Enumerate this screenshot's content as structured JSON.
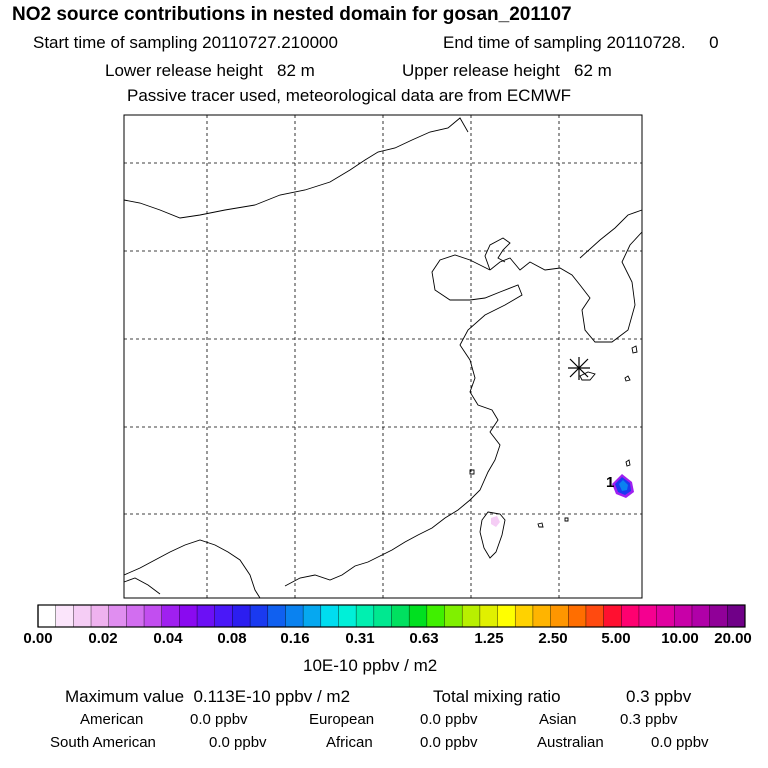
{
  "header": {
    "title": "NO2 source contributions in nested domain for gosan_201107",
    "start_label": "Start time of sampling 20110727.210000",
    "end_label": "End time of sampling 20110728.     0",
    "lower_label": "Lower release height   82 m",
    "upper_label": "Upper release height   62 m",
    "tracer_label": "Passive tracer used, meteorological data are from ECMWF"
  },
  "colors": {
    "segments": [
      "#ffffff",
      "#fbe5fb",
      "#f5cdf5",
      "#efb2ef",
      "#e08ef0",
      "#d26ef0",
      "#c24ef0",
      "#a020f0",
      "#8a0af0",
      "#6c10f5",
      "#4a18f8",
      "#2c1ef0",
      "#1a3af0",
      "#1060f0",
      "#0a82f0",
      "#06a8f0",
      "#00ddf0",
      "#00f0d8",
      "#00f0b0",
      "#00e890",
      "#00e060",
      "#00e020",
      "#40f000",
      "#80f000",
      "#b8f000",
      "#e0f000",
      "#ffff00",
      "#ffd200",
      "#ffb400",
      "#ff9600",
      "#ff6e00",
      "#ff4a10",
      "#ff1030",
      "#ff0070",
      "#f50090",
      "#e000a0",
      "#c800a8",
      "#b000a8",
      "#900098",
      "#700088"
    ]
  },
  "chart_data": {
    "type": "heatmap",
    "title": "NO2 source contributions in nested domain for gosan_201107",
    "colorbar": {
      "tick_labels": [
        "0.00",
        "0.02",
        "0.04",
        "0.08",
        "0.16",
        "0.31",
        "0.63",
        "1.25",
        "2.50",
        "5.00",
        "10.00",
        "20.00"
      ],
      "unit": "10E-10 ppbv / m2"
    },
    "marker_label": "1",
    "max_label": "Maximum value  0.113E-10 ppbv / m2",
    "total_label": "Total mixing ratio",
    "total_value": "0.3 ppbv",
    "regions": [
      {
        "name": "American",
        "value": "0.0 ppbv"
      },
      {
        "name": "European",
        "value": "0.0 ppbv"
      },
      {
        "name": "Asian",
        "value": "0.3 ppbv"
      },
      {
        "name": "South American",
        "value": "0.0 ppbv"
      },
      {
        "name": "African",
        "value": "0.0 ppbv"
      },
      {
        "name": "Australian",
        "value": "0.0 ppbv"
      }
    ]
  }
}
